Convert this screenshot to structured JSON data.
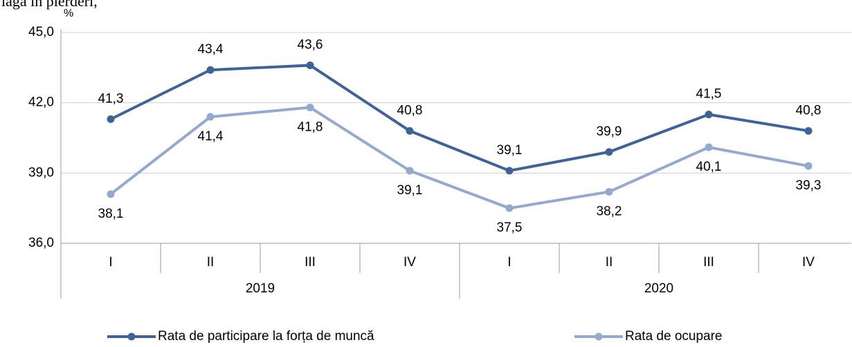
{
  "header_text": "lagă în pierderi,",
  "chart_data": {
    "type": "line",
    "y_unit": "%",
    "categories": [
      "I",
      "II",
      "III",
      "IV",
      "I",
      "II",
      "III",
      "IV"
    ],
    "category_groups": [
      "2019",
      "2020"
    ],
    "series": [
      {
        "name": "Rata de participare la forța de muncă",
        "color": "#3d6399",
        "values": [
          41.3,
          43.4,
          43.6,
          40.8,
          39.1,
          39.9,
          41.5,
          40.8
        ],
        "value_labels": [
          "41,3",
          "43,4",
          "43,6",
          "40,8",
          "39,1",
          "39,9",
          "41,5",
          "40,8"
        ]
      },
      {
        "name": "Rata de ocupare",
        "color": "#93a9d1",
        "values": [
          38.1,
          41.4,
          41.8,
          39.1,
          37.5,
          38.2,
          40.1,
          39.3
        ],
        "value_labels": [
          "38,1",
          "41,4",
          "41,8",
          "39,1",
          "37,5",
          "38,2",
          "40,1",
          "39,3"
        ]
      }
    ],
    "ylim": [
      36,
      45
    ],
    "yticks": [
      {
        "value": 36,
        "label": "36,0"
      },
      {
        "value": 39,
        "label": "39,0"
      },
      {
        "value": 42,
        "label": "42,0"
      },
      {
        "value": 45,
        "label": "45,0"
      }
    ],
    "grid": true,
    "legend": "bottom"
  }
}
